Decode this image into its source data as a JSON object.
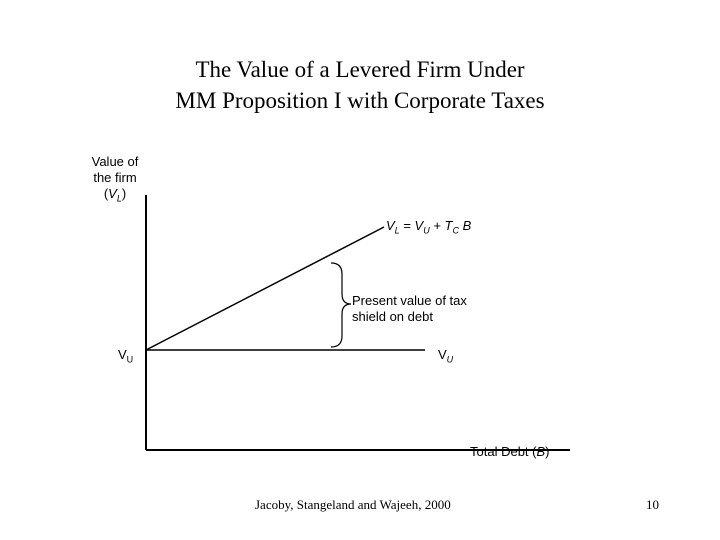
{
  "chart_data": {
    "type": "line",
    "title_line1": "The Value of a Levered Firm Under",
    "title_line2": "MM Proposition I with Corporate Taxes",
    "ylabel": {
      "line1": "Value of",
      "line2": "the firm",
      "symbol": "V",
      "symbol_sub": "L"
    },
    "xlabel": {
      "text": "Total Debt (",
      "symbol": "B",
      "close": ")"
    },
    "line_equation": {
      "lhs": "V",
      "lhs_sub": "L",
      "mid": " = V",
      "mid_sub": "U",
      "plus": " + T",
      "plus_sub": "C",
      "tail": " B"
    },
    "brace_annotation": {
      "line1": "Present value of tax",
      "line2": "shield on debt"
    },
    "vu_left": {
      "text": "V",
      "sub": "U"
    },
    "vu_right": {
      "text": "V",
      "sub": "U"
    }
  },
  "footer": {
    "citation": "Jacoby, Stangeland and Wajeeh, 2000",
    "page_number": "10"
  },
  "colors": {
    "title": "#000000",
    "lines": "#000000",
    "background": "#ffffff"
  }
}
